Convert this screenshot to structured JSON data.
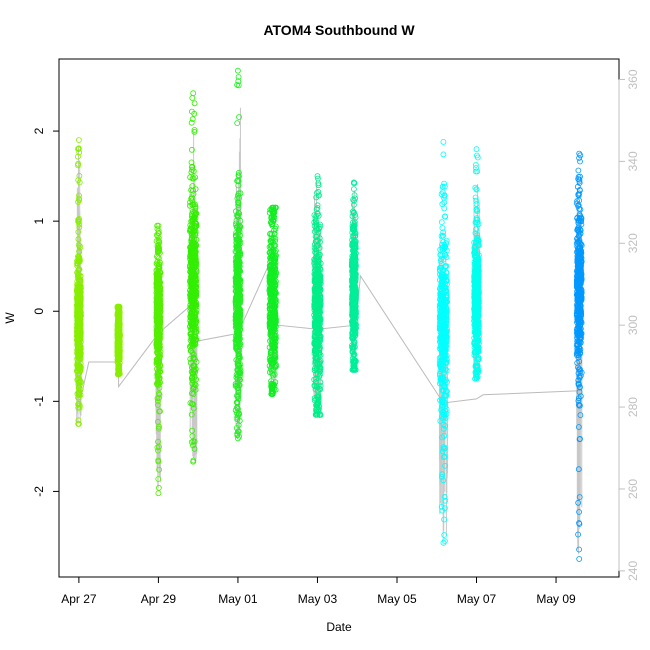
{
  "chart_data": {
    "type": "scatter",
    "title": "ATOM4 Southbound W",
    "xlabel": "Date",
    "ylabel": "W",
    "xlim": [
      "2023-04-26T12:00",
      "2023-05-10T14:00"
    ],
    "ylim": [
      -2.95,
      2.8
    ],
    "x_ticks": [
      "Apr 27",
      "Apr 29",
      "May 01",
      "May 03",
      "May 05",
      "May 07",
      "May 09"
    ],
    "y_ticks": [
      -2,
      -1,
      0,
      1,
      2
    ],
    "y2_ticks": [
      240,
      260,
      280,
      300,
      320,
      340,
      360
    ],
    "y2lim": [
      238.5,
      365
    ],
    "grid": false,
    "point_symbol": "open-circle",
    "clusters": [
      {
        "x": "2023-04-27T00:00",
        "width_hours": 2.5,
        "color": "#88ee00",
        "core": [
          -0.75,
          0.55
        ],
        "range": [
          -1.25,
          1.9
        ]
      },
      {
        "x": "2023-04-28T00:00",
        "width_hours": 1.5,
        "color": "#88ee00",
        "core": [
          -0.6,
          0.0
        ],
        "range": [
          -0.7,
          0.05
        ]
      },
      {
        "x": "2023-04-29T00:00",
        "width_hours": 2.5,
        "color": "#55ee00",
        "core": [
          -0.7,
          0.65
        ],
        "range": [
          -2.02,
          0.95
        ]
      },
      {
        "x": "2023-04-29T21:00",
        "width_hours": 4.0,
        "color": "#33ee00",
        "core": [
          -0.6,
          1.3
        ],
        "range": [
          -1.67,
          2.42
        ]
      },
      {
        "x": "2023-05-01T00:00",
        "width_hours": 3.0,
        "color": "#22ee22",
        "core": [
          -0.8,
          1.05
        ],
        "range": [
          -1.41,
          2.67
        ]
      },
      {
        "x": "2023-05-01T21:00",
        "width_hours": 4.0,
        "color": "#11ee22",
        "core": [
          -0.8,
          1.0
        ],
        "range": [
          -0.92,
          1.15
        ]
      },
      {
        "x": "2023-05-03T00:00",
        "width_hours": 4.0,
        "color": "#00ee88",
        "core": [
          -0.95,
          0.9
        ],
        "range": [
          -1.15,
          1.5
        ]
      },
      {
        "x": "2023-05-03T22:00",
        "width_hours": 2.5,
        "color": "#00ee99",
        "core": [
          -0.55,
          0.9
        ],
        "range": [
          -0.65,
          1.43
        ]
      },
      {
        "x": "2023-05-06T04:00",
        "width_hours": 4.5,
        "color": "#00ffff",
        "core": [
          -1.05,
          0.7
        ],
        "range": [
          -2.57,
          1.88
        ]
      },
      {
        "x": "2023-05-07T00:00",
        "width_hours": 3.0,
        "color": "#00ffee",
        "core": [
          -0.6,
          0.75
        ],
        "range": [
          -0.75,
          1.8
        ]
      },
      {
        "x": "2023-05-09T14:00",
        "width_hours": 3.0,
        "color": "#0099ff",
        "core": [
          -0.6,
          1.0
        ],
        "range": [
          -2.75,
          1.75
        ]
      }
    ],
    "gray_line": {
      "color": "#bbbbbb",
      "x": [
        "2023-04-27T00:00",
        "2023-04-27T06:00",
        "2023-04-28T00:00",
        "2023-04-28T00:00",
        "2023-04-29T00:00",
        "2023-04-29T20:00",
        "2023-04-29T22:00",
        "2023-05-01T00:00",
        "2023-05-01T20:00",
        "2023-05-02T00:00",
        "2023-05-03T00:00",
        "2023-05-03T23:00",
        "2023-05-04T02:00",
        "2023-05-06T04:00",
        "2023-05-07T00:00",
        "2023-05-07T04:00",
        "2023-05-09T14:00"
      ],
      "y2": [
        280,
        291,
        291,
        285,
        298,
        305,
        296,
        298,
        316,
        300,
        299,
        300,
        312,
        281,
        282,
        283,
        284
      ]
    }
  }
}
